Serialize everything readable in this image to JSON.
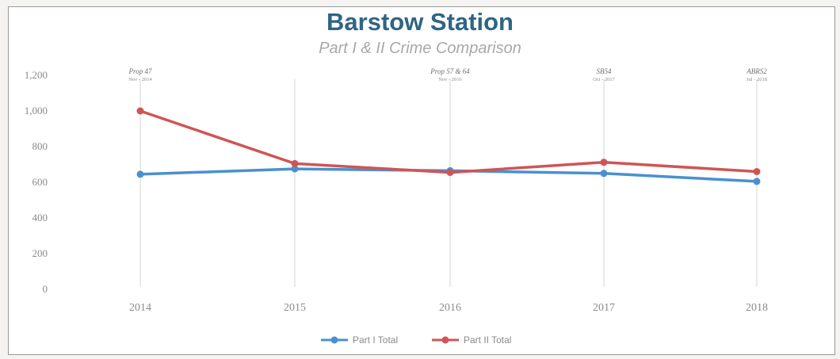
{
  "chart_data": {
    "type": "line",
    "title": "Barstow Station",
    "subtitle": "Part I & II Crime Comparison",
    "categories": [
      "2014",
      "2015",
      "2016",
      "2017",
      "2018"
    ],
    "yticks": [
      "0",
      "200",
      "400",
      "600",
      "800",
      "1,000",
      "1,200"
    ],
    "ylim": [
      0,
      1200
    ],
    "grid": false,
    "legend_position": "bottom",
    "series": [
      {
        "name": "Part I Total",
        "color": "#4a90d0",
        "values": [
          645,
          675,
          665,
          650,
          605
        ]
      },
      {
        "name": "Part II Total",
        "color": "#cf5555",
        "values": [
          1000,
          705,
          655,
          712,
          660
        ]
      }
    ],
    "annotations": [
      {
        "category": "2014",
        "label": "Prop 47",
        "date": "Nov - 2014"
      },
      {
        "category": "2016",
        "label": "Prop 57 & 64",
        "date": "Nov - 2016"
      },
      {
        "category": "2017",
        "label": "SB54",
        "date": "Oct - 2017"
      },
      {
        "category": "2018",
        "label": "ABRS2",
        "date": "Jul - 2018"
      }
    ]
  }
}
